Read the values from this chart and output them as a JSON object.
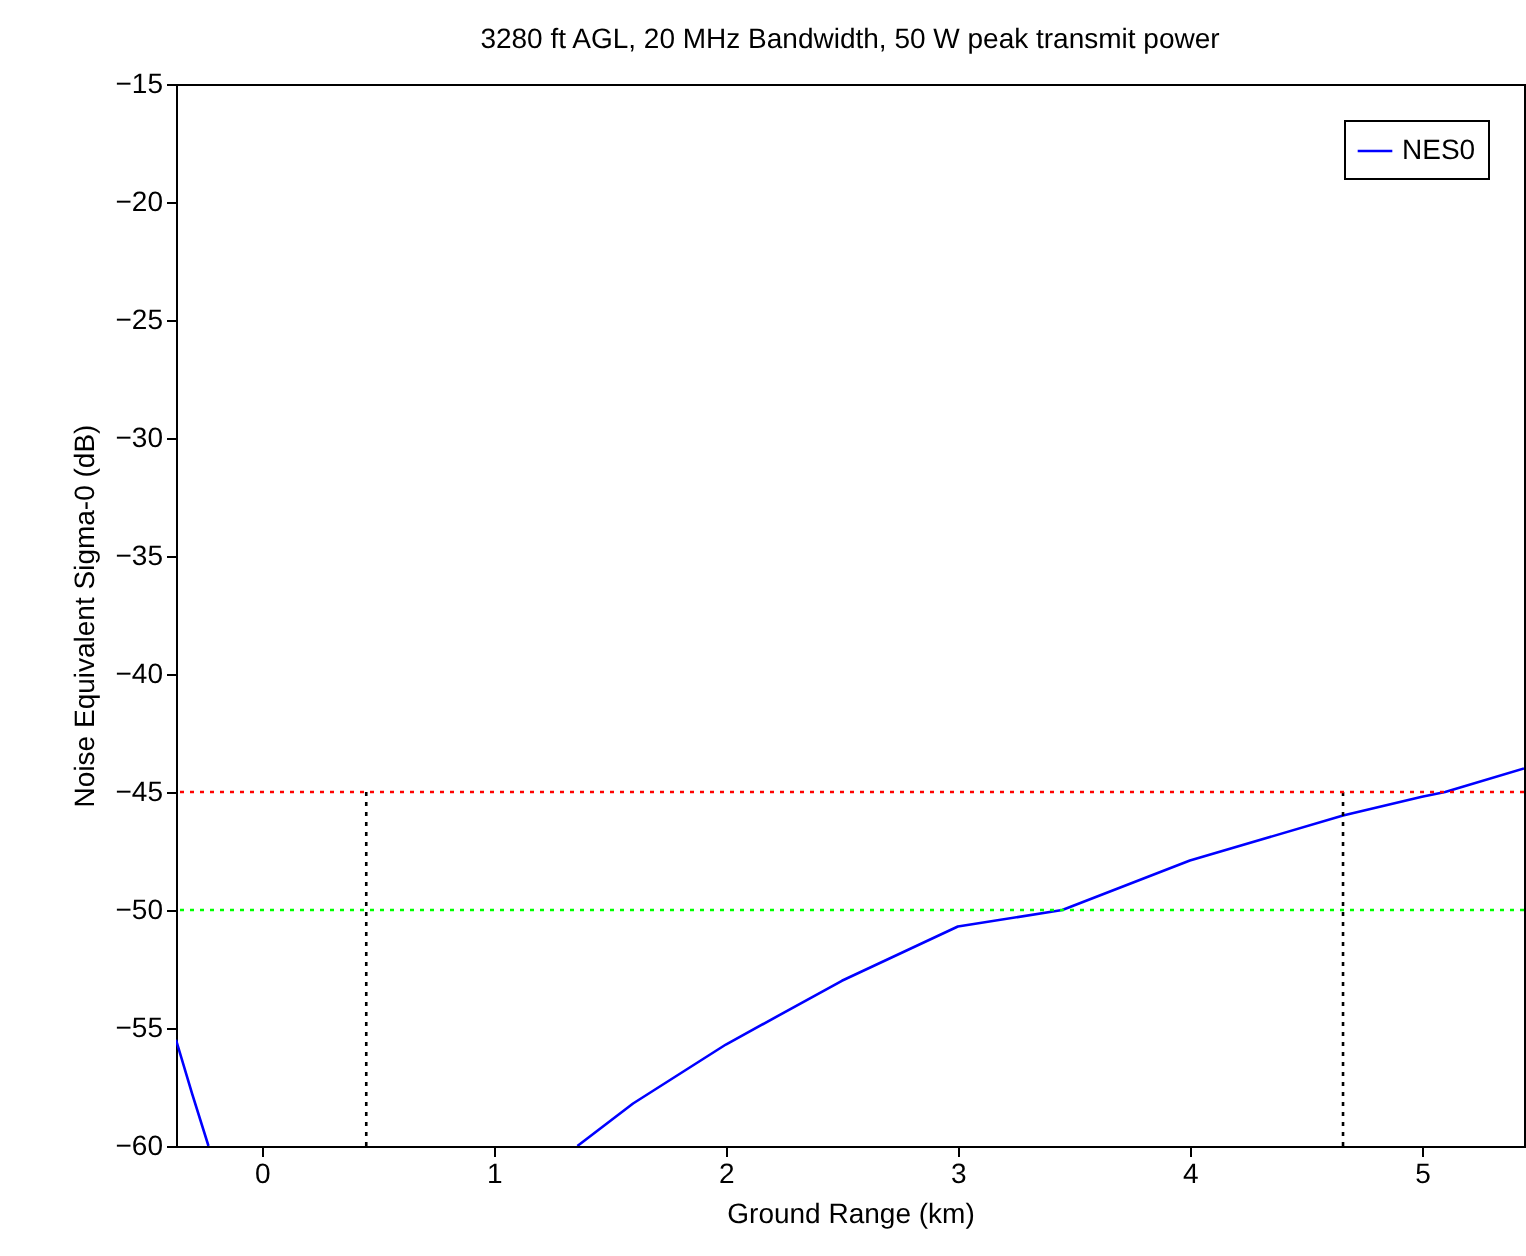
{
  "chart_data": {
    "type": "line",
    "title": "3280 ft AGL, 20 MHz Bandwidth, 50 W peak transmit power",
    "xlabel": "Ground Range (km)",
    "ylabel": "Noise Equivalent Sigma-0 (dB)",
    "xlim": [
      -0.37,
      5.44
    ],
    "xticks": [
      0,
      1,
      2,
      3,
      4,
      5
    ],
    "ylim": [
      -60,
      -15
    ],
    "yticks": [
      -60,
      -55,
      -50,
      -45,
      -40,
      -35,
      -30,
      -25,
      -20,
      -15
    ],
    "grid": false,
    "legend": "top right",
    "series": [
      {
        "name": "NES0",
        "color": "#0000ff",
        "x": [
          -0.37,
          -0.3,
          -0.23,
          0.5,
          1.36,
          1.6,
          2,
          2.5,
          3,
          3.45,
          4,
          4.66,
          5,
          5.1,
          5.44
        ],
        "values": [
          -55.5,
          -57.8,
          -60,
          null,
          -60,
          -58.2,
          -55.7,
          -53,
          -50.7,
          -50,
          -47.9,
          -46,
          -45.2,
          -45,
          -44
        ]
      },
      {
        "type": "line",
        "color": "#000000",
        "line_style": "dotted",
        "x": [
          0.45,
          0.45
        ],
        "values": [
          -60,
          -45
        ]
      },
      {
        "type": "line",
        "color": "#000000",
        "line_style": "dotted",
        "x": [
          4.66,
          4.66
        ],
        "values": [
          -60,
          -45
        ]
      }
    ],
    "ref_lines": [
      {
        "axis": "y",
        "value": -45,
        "color": "#ff0000",
        "line_style": "dotted"
      },
      {
        "axis": "y",
        "value": -50,
        "color": "#00ff00",
        "line_style": "dotted"
      }
    ]
  }
}
